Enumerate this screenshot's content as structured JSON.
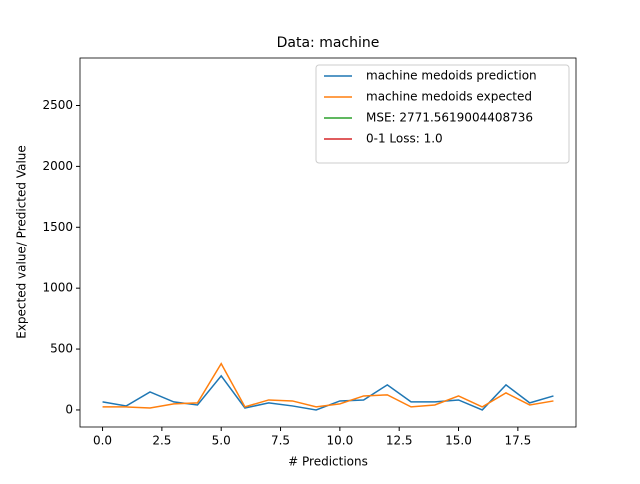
{
  "chart_data": {
    "type": "line",
    "title": "Data: machine",
    "xlabel": "# Predictions",
    "ylabel": "Expected value/ Predicted Value",
    "x": [
      0,
      1,
      2,
      3,
      4,
      5,
      6,
      7,
      8,
      9,
      10,
      11,
      12,
      13,
      14,
      15,
      16,
      17,
      18,
      19
    ],
    "series": [
      {
        "name": "machine medoids prediction",
        "color": "#1f77b4",
        "values": [
          66,
          33,
          148,
          66,
          41,
          280,
          16,
          58,
          33,
          0,
          74,
          82,
          206,
          66,
          66,
          82,
          0,
          206,
          58,
          115
        ]
      },
      {
        "name": "machine medoids expected",
        "color": "#ff7f0e",
        "values": [
          25,
          25,
          16,
          50,
          58,
          380,
          25,
          82,
          74,
          25,
          50,
          115,
          124,
          25,
          41,
          115,
          25,
          140,
          41,
          74
        ]
      }
    ],
    "legend_extra": [
      {
        "name": "MSE: 2771.5619004408736",
        "color": "#2ca02c"
      },
      {
        "name": "0-1 Loss: 1.0",
        "color": "#d62728"
      }
    ],
    "legend": "upper right",
    "xlim": [
      -0.95,
      19.95
    ],
    "xticks": [
      {
        "value": 0,
        "label": "0.0"
      },
      {
        "value": 2.5,
        "label": "2.5"
      },
      {
        "value": 5,
        "label": "5.0"
      },
      {
        "value": 7.5,
        "label": "7.5"
      },
      {
        "value": 10,
        "label": "10.0"
      },
      {
        "value": 12.5,
        "label": "12.5"
      },
      {
        "value": 15,
        "label": "15.0"
      },
      {
        "value": 17.5,
        "label": "17.5"
      }
    ],
    "ylim": [
      -140,
      2890
    ],
    "yticks": [
      0,
      500,
      1000,
      1500,
      2000,
      2500
    ]
  }
}
